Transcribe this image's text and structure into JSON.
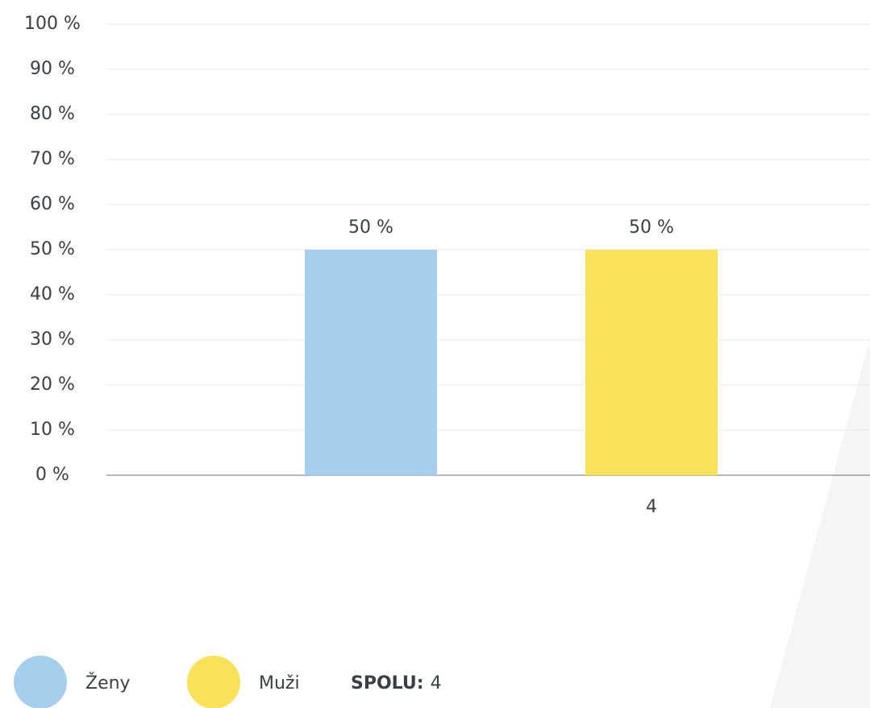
{
  "chart_data": {
    "type": "bar",
    "categories": [
      null,
      "4"
    ],
    "series": [
      {
        "name": "Ženy",
        "color": "#a6cfee",
        "values": [
          50,
          null
        ],
        "value_labels": [
          "50 %",
          null
        ]
      },
      {
        "name": "Muži",
        "color": "#fae15a",
        "values": [
          null,
          50
        ],
        "value_labels": [
          null,
          "50 %"
        ]
      }
    ],
    "ylim": [
      0,
      100
    ],
    "yticks": [
      {
        "value": 0,
        "label": "0 %"
      },
      {
        "value": 10,
        "label": "10 %"
      },
      {
        "value": 20,
        "label": "20 %"
      },
      {
        "value": 30,
        "label": "30 %"
      },
      {
        "value": 40,
        "label": "40 %"
      },
      {
        "value": 50,
        "label": "50 %"
      },
      {
        "value": 60,
        "label": "60 %"
      },
      {
        "value": 70,
        "label": "70 %"
      },
      {
        "value": 80,
        "label": "80 %"
      },
      {
        "value": 90,
        "label": "90 %"
      },
      {
        "value": 100,
        "label": "100 %"
      }
    ],
    "grid": true,
    "total_label": "SPOLU:",
    "total": 4
  }
}
